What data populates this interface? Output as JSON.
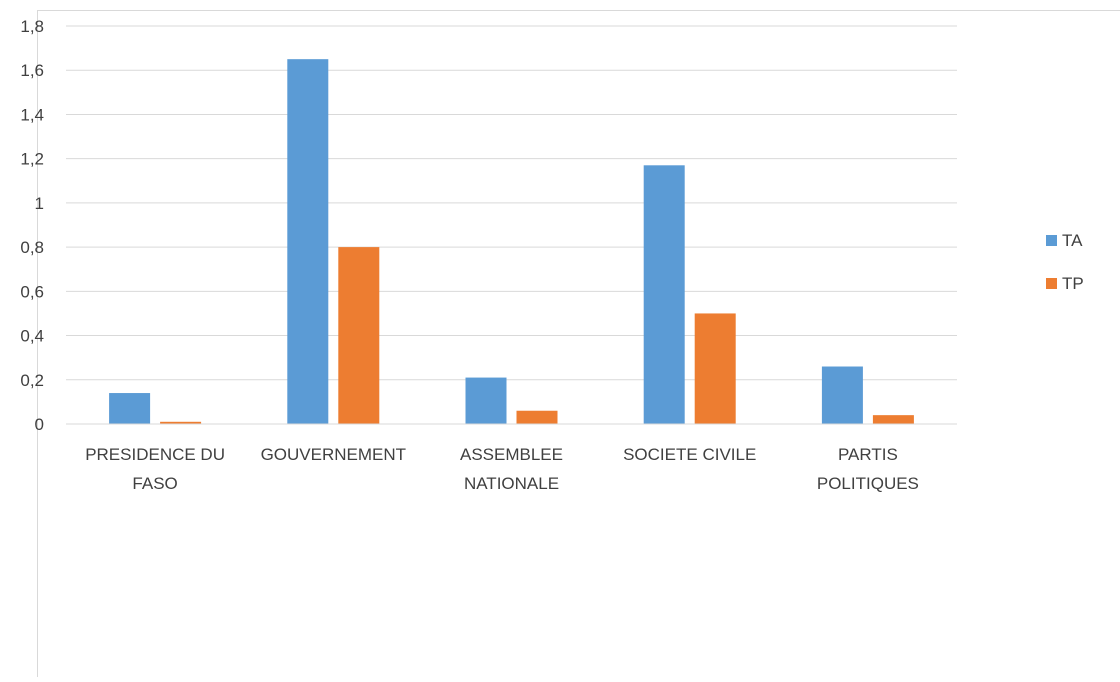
{
  "chart_data": {
    "type": "bar",
    "categories": [
      [
        "PRESIDENCE DU",
        "FASO"
      ],
      [
        "GOUVERNEMENT"
      ],
      [
        "ASSEMBLEE",
        "NATIONALE"
      ],
      [
        "SOCIETE CIVILE"
      ],
      [
        "PARTIS",
        "POLITIQUES"
      ]
    ],
    "series": [
      {
        "name": "TA",
        "color": "#5B9BD5",
        "values": [
          0.14,
          1.65,
          0.21,
          1.17,
          0.26
        ]
      },
      {
        "name": "TP",
        "color": "#ED7D31",
        "values": [
          0.01,
          0.8,
          0.06,
          0.5,
          0.04
        ]
      }
    ],
    "y_ticks": [
      "0",
      "0,2",
      "0,4",
      "0,6",
      "0,8",
      "1",
      "1,2",
      "1,4",
      "1,6",
      "1,8"
    ],
    "ylim": [
      0,
      1.8
    ],
    "grid": true,
    "legend_position": "right"
  }
}
